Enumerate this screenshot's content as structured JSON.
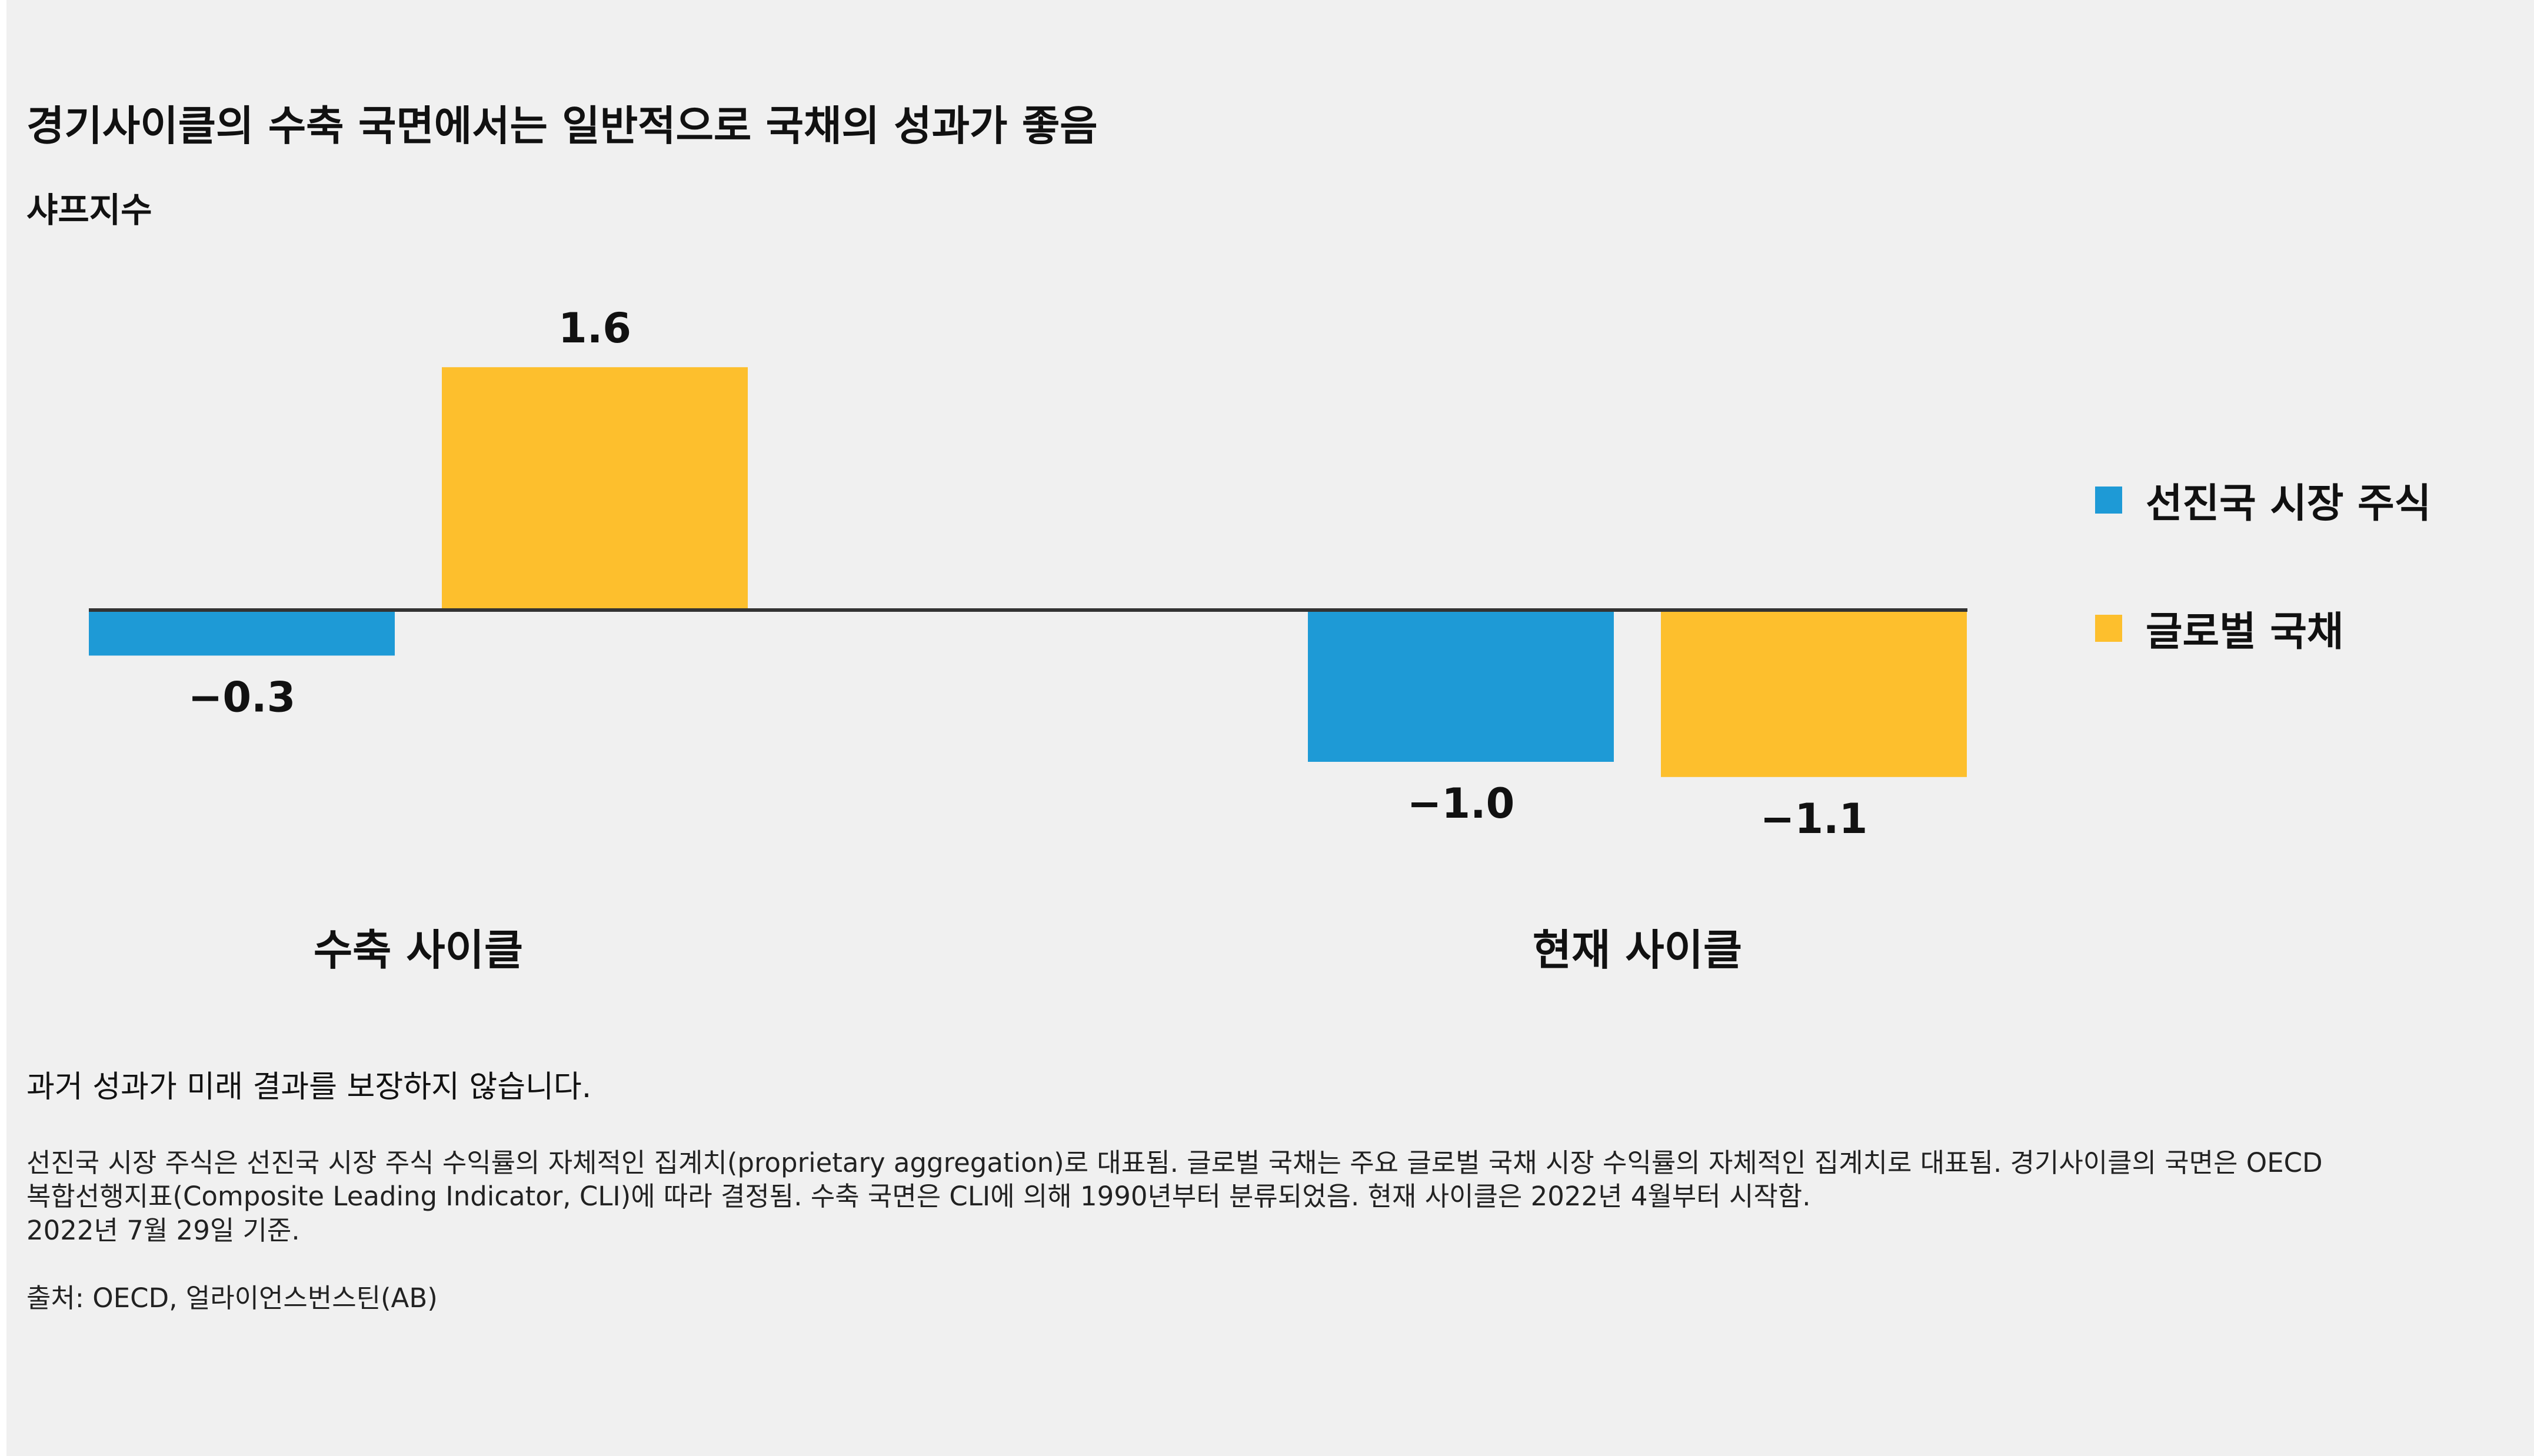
{
  "title": "경기사이클의 수축 국면에서는 일반적으로 국채의 성과가 좋음",
  "subtitle": "샤프지수",
  "chart_data": {
    "type": "bar",
    "title": "경기사이클의 수축 국면에서는 일반적으로 국채의 성과가 좋음",
    "ylabel": "샤프지수",
    "categories": [
      "수축 사이클",
      "현재 사이클"
    ],
    "series": [
      {
        "name": "선진국 시장 주식",
        "color": "#1e9ad6",
        "values": [
          -0.3,
          -1.0
        ],
        "labels": [
          "−0.3",
          "−1.0"
        ]
      },
      {
        "name": "글로벌 국채",
        "color": "#fdbf2d",
        "values": [
          1.6,
          -1.1
        ],
        "labels": [
          "1.6",
          "−1.1"
        ]
      }
    ],
    "ylim": [
      -1.2,
      1.7
    ],
    "grid": false,
    "legend_position": "right"
  },
  "legend": [
    {
      "label": "선진국 시장 주식",
      "color": "#1e9ad6"
    },
    {
      "label": "글로벌 국채",
      "color": "#fdbf2d"
    }
  ],
  "disclaimer": "과거 성과가 미래 결과를 보장하지 않습니다.",
  "notes": [
    "선진국 시장 주식은 선진국 시장 주식 수익률의 자체적인 집계치(proprietary aggregation)로 대표됨. 글로벌 국채는 주요 글로벌 국채 시장 수익률의 자체적인 집계치로 대표됨. 경기사이클의 국면은 OECD",
    "복합선행지표(Composite Leading Indicator, CLI)에 따라 결정됨.  수축 국면은 CLI에 의해 1990년부터 분류되었음. 현재 사이클은 2022년 4월부터 시작함.",
    "2022년 7월 29일 기준.",
    "출처: OECD, 얼라이언스번스틴(AB)"
  ]
}
